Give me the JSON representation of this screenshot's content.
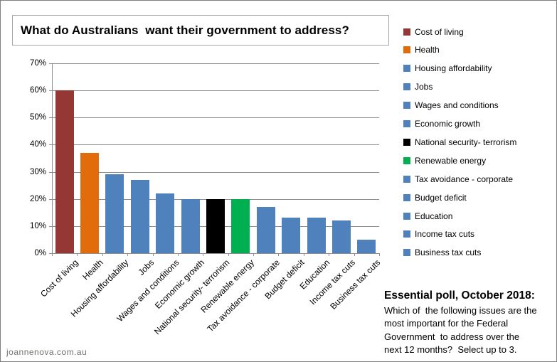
{
  "title": "What do Australians  want their government to address?",
  "watermark": "joannenova.com.au",
  "source_note": {
    "heading": "Essential poll, October 2018:",
    "lines": [
      "Which of  the following issues are the",
      "most important for the Federal",
      "Government  to address over the",
      "next 12 months?  Select up to 3."
    ]
  },
  "colors": {
    "default_bar": "#4F81BD",
    "brick": "#953735",
    "orange": "#E36C0A",
    "black": "#000000",
    "green": "#00B050",
    "grid": "#8E8E8E",
    "axis": "#8E8E8E",
    "outer_border": "#7F7F7F",
    "title_border": "#A6A6A6",
    "watermark": "#72726A"
  },
  "chart_data": {
    "type": "bar",
    "title": "What do Australians want their government to address?",
    "categories": [
      "Cost of living",
      "Health",
      "Housing affordability",
      "Jobs",
      "Wages and conditions",
      "Economic growth",
      "National security- terrorism",
      "Renewable energy",
      "Tax avoidance - corporate",
      "Budget deficit",
      "Education",
      "Income tax cuts",
      "Business tax cuts"
    ],
    "values": [
      60,
      37,
      29,
      27,
      22,
      20,
      20,
      20,
      17,
      13,
      13,
      12,
      5
    ],
    "bar_colors": [
      "#953735",
      "#E36C0A",
      "#4F81BD",
      "#4F81BD",
      "#4F81BD",
      "#4F81BD",
      "#000000",
      "#00B050",
      "#4F81BD",
      "#4F81BD",
      "#4F81BD",
      "#4F81BD",
      "#4F81BD"
    ],
    "xlabel": "",
    "ylabel": "",
    "ylim": [
      0,
      70
    ],
    "ytick_step": 10,
    "ytick_suffix": "%",
    "grid": true,
    "legend_position": "right",
    "legend": [
      {
        "label": "Cost of living",
        "color": "#953735"
      },
      {
        "label": "Health",
        "color": "#E36C0A"
      },
      {
        "label": "Housing affordability",
        "color": "#4F81BD"
      },
      {
        "label": "Jobs",
        "color": "#4F81BD"
      },
      {
        "label": "Wages and conditions",
        "color": "#4F81BD"
      },
      {
        "label": "Economic growth",
        "color": "#4F81BD"
      },
      {
        "label": "National security- terrorism",
        "color": "#000000"
      },
      {
        "label": "Renewable energy",
        "color": "#00B050"
      },
      {
        "label": "Tax avoidance - corporate",
        "color": "#4F81BD"
      },
      {
        "label": "Budget deficit",
        "color": "#4F81BD"
      },
      {
        "label": "Education",
        "color": "#4F81BD"
      },
      {
        "label": "Income tax cuts",
        "color": "#4F81BD"
      },
      {
        "label": "Business tax cuts",
        "color": "#4F81BD"
      }
    ]
  }
}
